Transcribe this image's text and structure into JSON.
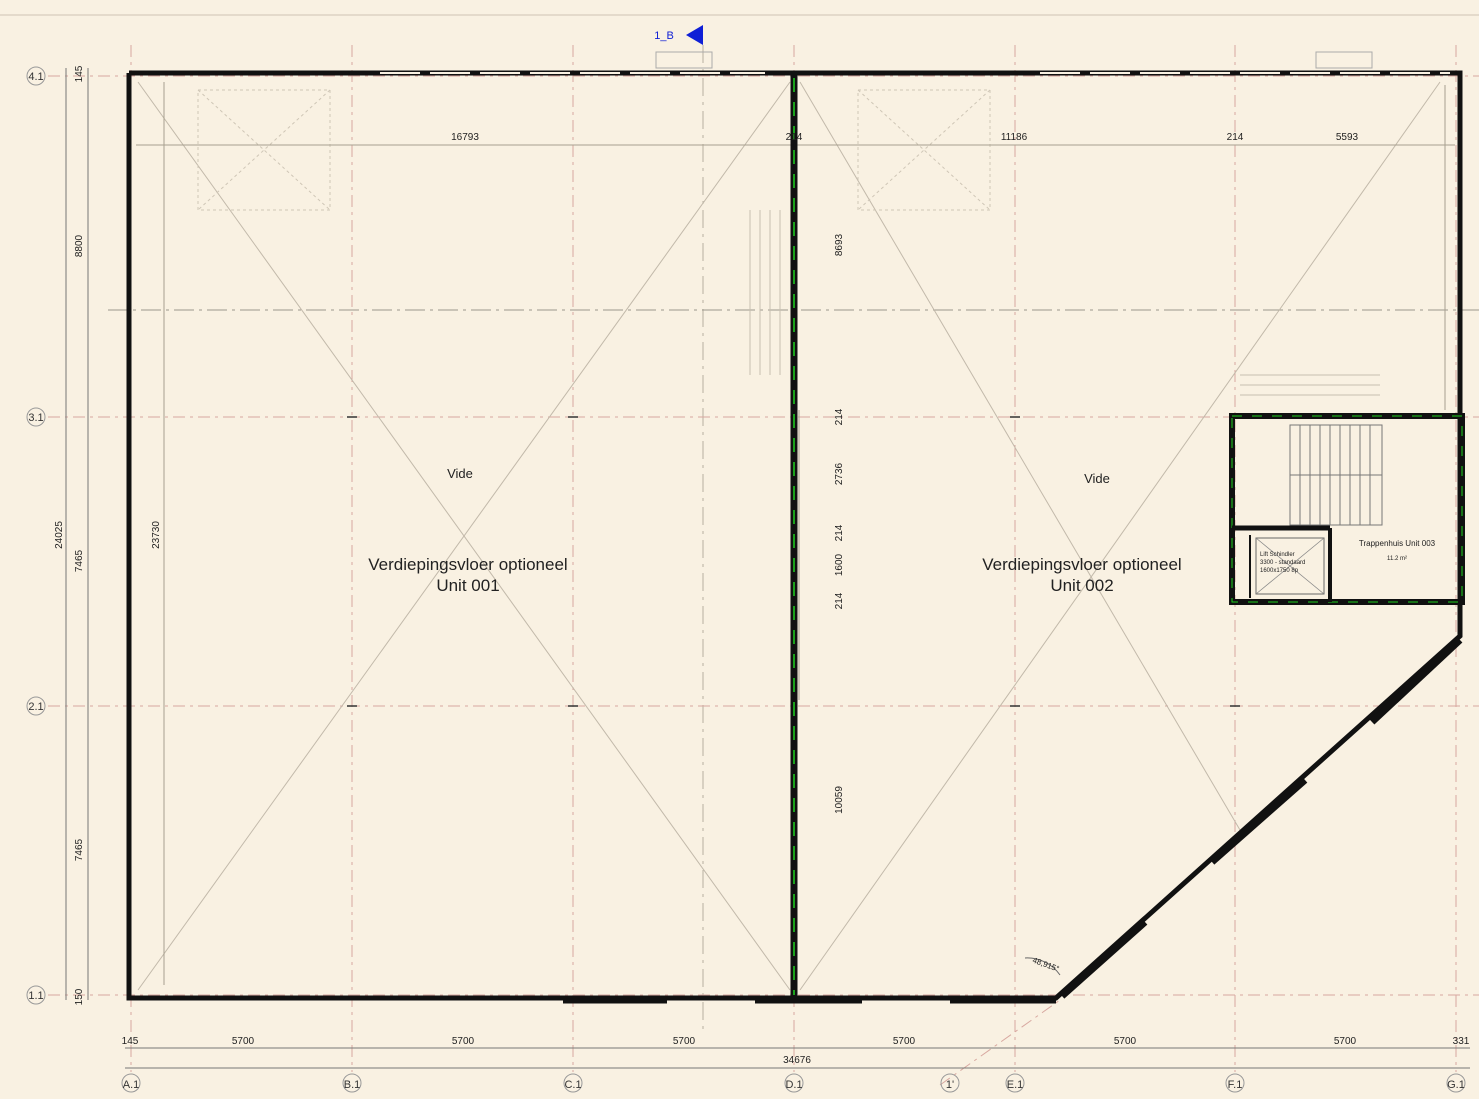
{
  "colors": {
    "background": "#f9f1e2",
    "wall": "#111111",
    "grid_line": "#d8a8a0",
    "thin_line": "#b0a89a",
    "marker": "#0f1fd6",
    "accent_green": "#1fd11f"
  },
  "section_marker": {
    "label": "1_B"
  },
  "grid_columns": [
    "A.1",
    "B.1",
    "C.1",
    "D.1",
    "1'",
    "E.1",
    "F.1",
    "G.1"
  ],
  "grid_rows": [
    "4.1",
    "3.1",
    "2.1",
    "1.1"
  ],
  "bottom_dims": {
    "segments": [
      "145",
      "5700",
      "5700",
      "5700",
      "5700",
      "5700",
      "5700",
      "331"
    ],
    "total": "34676"
  },
  "top_dims": [
    "16793",
    "214",
    "11186",
    "214",
    "5593"
  ],
  "left_dims": {
    "outer": [
      "145",
      "8800",
      "7465",
      "7465",
      "150"
    ],
    "total": "24025",
    "inner": "23730"
  },
  "middle_dims": [
    "8693",
    "214",
    "2736",
    "214",
    "1600",
    "214",
    "10059"
  ],
  "angle": "48,915°",
  "units": [
    {
      "vide": "Vide",
      "line1": "Verdiepingsvloer optioneel",
      "line2": "Unit 001"
    },
    {
      "vide": "Vide",
      "line1": "Verdiepingsvloer optioneel",
      "line2": "Unit 002"
    }
  ],
  "stair_room": {
    "name": "Trappenhuis Unit 003",
    "area": "11.2 m²"
  },
  "lift": {
    "line1": "Lift Schindler",
    "line2": "3300 - standaard",
    "line3": "1600x1750 8p"
  }
}
